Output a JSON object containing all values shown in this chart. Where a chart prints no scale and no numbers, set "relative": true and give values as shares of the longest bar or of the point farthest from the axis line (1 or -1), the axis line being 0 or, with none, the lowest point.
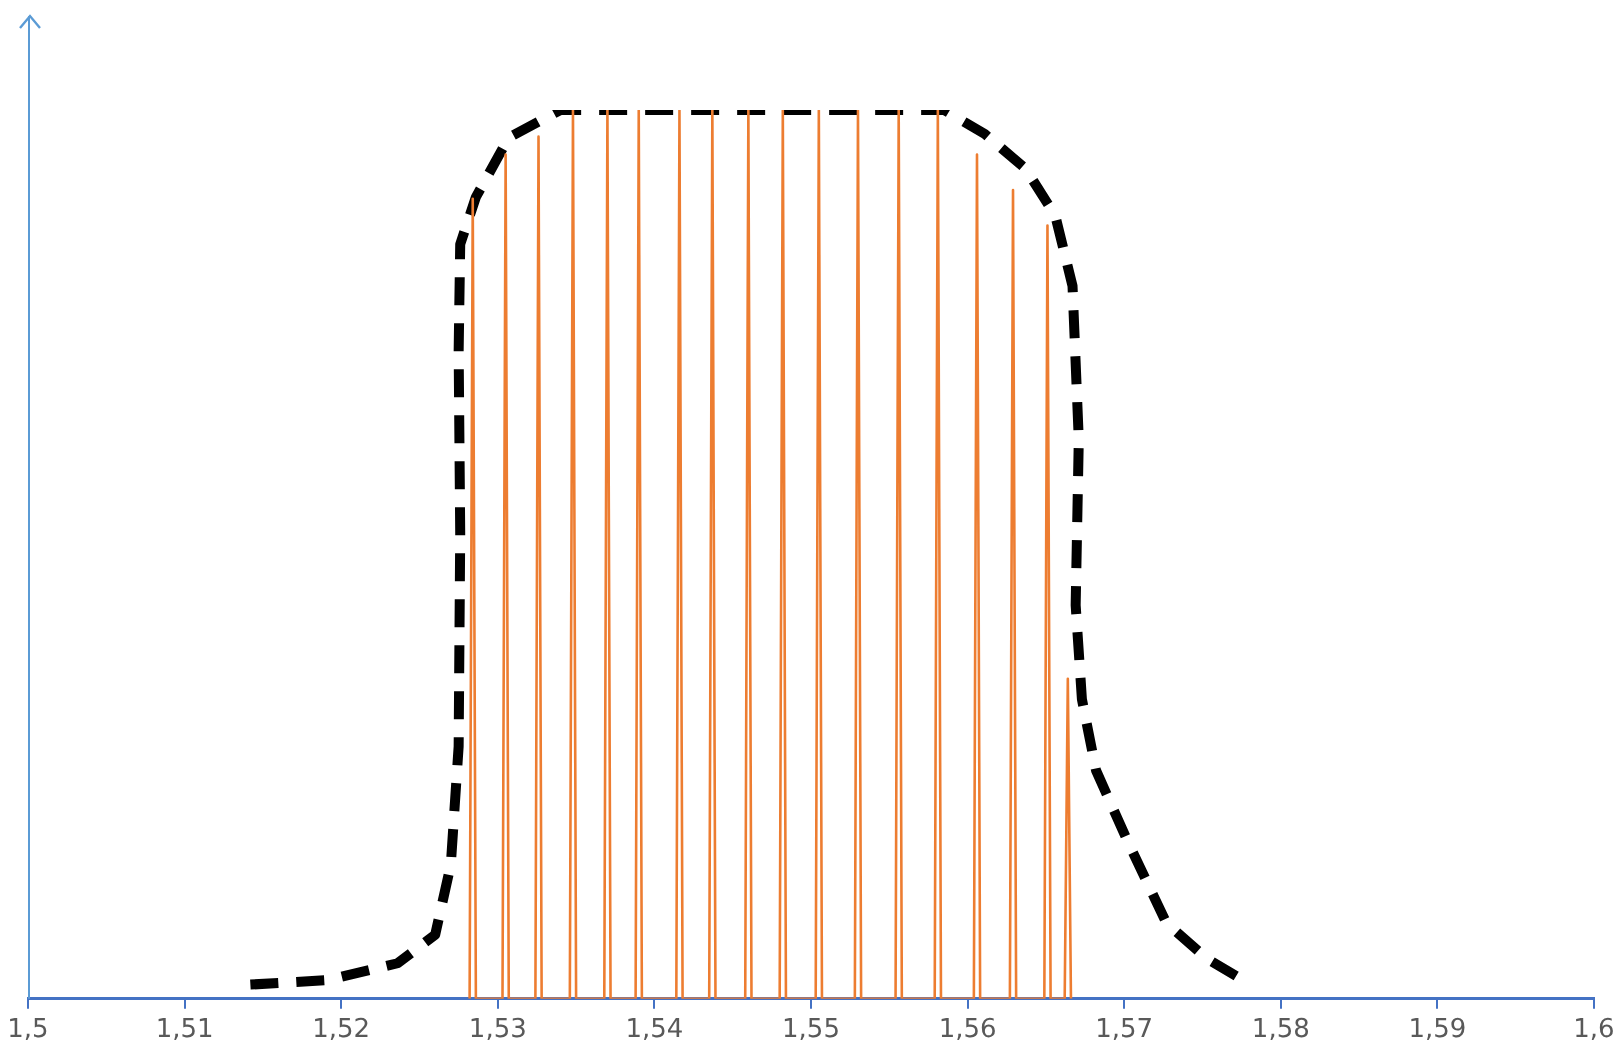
{
  "chart_data": {
    "type": "line",
    "relative": true,
    "grid": false,
    "legend": false,
    "marker": "none",
    "xlim": [
      1.5,
      1.6
    ],
    "xticks": [
      {
        "value": 1.5,
        "label": "1,5"
      },
      {
        "value": 1.51,
        "label": "1,51"
      },
      {
        "value": 1.52,
        "label": "1,52"
      },
      {
        "value": 1.53,
        "label": "1,53"
      },
      {
        "value": 1.54,
        "label": "1,54"
      },
      {
        "value": 1.55,
        "label": "1,55"
      },
      {
        "value": 1.56,
        "label": "1,56"
      },
      {
        "value": 1.57,
        "label": "1,57"
      },
      {
        "value": 1.58,
        "label": "1,58"
      },
      {
        "value": 1.59,
        "label": "1,59"
      },
      {
        "value": 1.6,
        "label": "1,6"
      }
    ],
    "series": [
      {
        "color": "#ed7d31",
        "line_style": "solid",
        "x": [
          1.5282,
          1.5284,
          1.5286,
          1.5303,
          1.5305,
          1.5307,
          1.5324,
          1.5326,
          1.5328,
          1.5346,
          1.5348,
          1.535,
          1.5368,
          1.537,
          1.5372,
          1.5388,
          1.539,
          1.5392,
          1.5414,
          1.5416,
          1.5418,
          1.5435,
          1.5437,
          1.5439,
          1.5458,
          1.546,
          1.5462,
          1.548,
          1.5482,
          1.5484,
          1.5503,
          1.5505,
          1.5507,
          1.5528,
          1.553,
          1.5532,
          1.5554,
          1.5556,
          1.5558,
          1.5579,
          1.5581,
          1.5583,
          1.5604,
          1.5606,
          1.5608,
          1.5627,
          1.5629,
          1.5631,
          1.5649,
          1.5651,
          1.5653,
          1.5662,
          1.5664,
          1.5666
        ],
        "values": [
          0,
          0.9,
          0,
          0,
          0.95,
          0,
          0,
          0.97,
          0,
          0,
          1,
          0,
          0,
          1,
          0,
          0,
          1,
          0,
          0,
          1,
          0,
          0,
          1,
          0,
          0,
          1,
          0,
          0,
          1,
          0,
          0,
          1,
          0,
          0,
          1,
          0,
          0,
          1,
          0,
          0,
          1,
          0,
          0,
          0.95,
          0,
          0,
          0.91,
          0,
          0,
          0.87,
          0,
          0,
          0.36,
          0
        ]
      },
      {
        "color": "#000000",
        "line_style": "dashed",
        "x": [
          1.5142,
          1.5191,
          1.5236,
          1.526,
          1.527,
          1.5275,
          1.5276,
          1.5275,
          1.5276,
          1.5286,
          1.5307,
          1.534,
          1.5585,
          1.5611,
          1.5637,
          1.5656,
          1.5667,
          1.5671,
          1.5669,
          1.5673,
          1.5682,
          1.5702,
          1.5727,
          1.5753,
          1.5773
        ],
        "values": [
          0.016,
          0.021,
          0.04,
          0.072,
          0.151,
          0.284,
          0.523,
          0.729,
          0.849,
          0.902,
          0.969,
          1,
          1,
          0.973,
          0.934,
          0.881,
          0.802,
          0.629,
          0.443,
          0.337,
          0.257,
          0.178,
          0.085,
          0.045,
          0.024
        ]
      }
    ]
  }
}
